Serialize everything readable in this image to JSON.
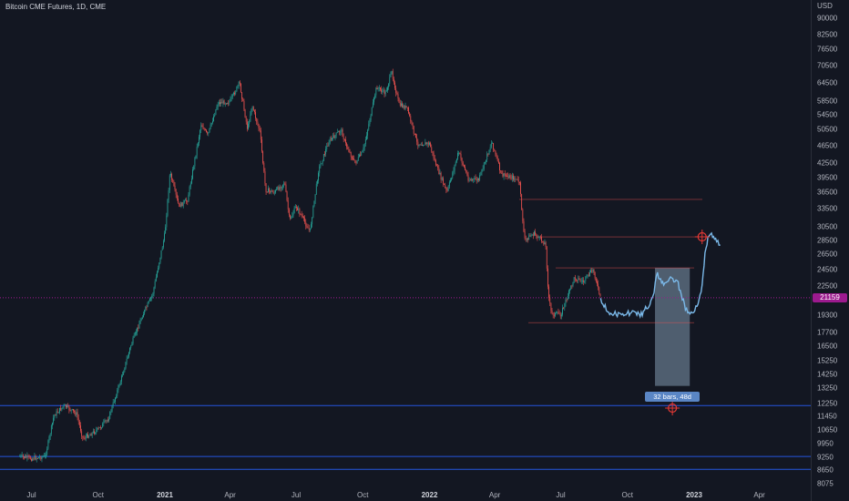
{
  "title": "Bitcoin CME Futures, 1D, CME",
  "axis": {
    "currency": "USD",
    "price_ticks": [
      "90000",
      "82500",
      "76500",
      "70500",
      "64500",
      "58500",
      "54500",
      "50500",
      "46500",
      "42500",
      "39500",
      "36500",
      "33500",
      "30500",
      "28500",
      "26500",
      "24500",
      "22500",
      "19300",
      "17700",
      "16500",
      "15250",
      "14250",
      "13250",
      "12250",
      "11450",
      "10650",
      "9950",
      "9250",
      "8650",
      "8075"
    ],
    "current_price": "21159",
    "time_ticks": [
      {
        "label": "Jul",
        "year": false
      },
      {
        "label": "Oct",
        "year": false
      },
      {
        "label": "2021",
        "year": true
      },
      {
        "label": "Apr",
        "year": false
      },
      {
        "label": "Jul",
        "year": false
      },
      {
        "label": "Oct",
        "year": false
      },
      {
        "label": "2022",
        "year": true
      },
      {
        "label": "Apr",
        "year": false
      },
      {
        "label": "Jul",
        "year": false
      },
      {
        "label": "Oct",
        "year": false
      },
      {
        "label": "2023",
        "year": true
      },
      {
        "label": "Apr",
        "year": false
      }
    ]
  },
  "drawings": {
    "date_range_label": "32 bars, 48d"
  },
  "colors": {
    "background": "#131722",
    "up": "#26a69a",
    "down": "#ef5350",
    "projection": "#7ab8e8",
    "price_line": "#9c1a8e",
    "horizontal_line": "#2962ff",
    "range_box": "#5f7083"
  },
  "chart_data": {
    "type": "line",
    "title": "Bitcoin CME Futures, 1D, CME",
    "xlabel": "",
    "ylabel": "USD",
    "scale": "log",
    "ylim": [
      7900,
      95000
    ],
    "series": [
      {
        "x": [
          "2020-06-15",
          "2020-07-01",
          "2020-07-20",
          "2020-08-01",
          "2020-08-15",
          "2020-09-01",
          "2020-09-10",
          "2020-10-01",
          "2020-10-15",
          "2020-11-01",
          "2020-11-15",
          "2020-12-01",
          "2020-12-15",
          "2021-01-01",
          "2021-01-08",
          "2021-01-20",
          "2021-02-01",
          "2021-02-20",
          "2021-03-01",
          "2021-03-15",
          "2021-04-01",
          "2021-04-14",
          "2021-04-25",
          "2021-05-01",
          "2021-05-12",
          "2021-05-20",
          "2021-06-01",
          "2021-06-15",
          "2021-06-22",
          "2021-07-01",
          "2021-07-20",
          "2021-08-01",
          "2021-08-15",
          "2021-09-01",
          "2021-09-07",
          "2021-09-20",
          "2021-10-01",
          "2021-10-20",
          "2021-11-01",
          "2021-11-10",
          "2021-11-20",
          "2021-12-01",
          "2021-12-15",
          "2022-01-01",
          "2022-01-10",
          "2022-01-25",
          "2022-02-10",
          "2022-02-24",
          "2022-03-10",
          "2022-03-28",
          "2022-04-10",
          "2022-04-25",
          "2022-05-05",
          "2022-05-12",
          "2022-05-25",
          "2022-06-10",
          "2022-06-14",
          "2022-06-18",
          "2022-07-01",
          "2022-07-20",
          "2022-08-01",
          "2022-08-15",
          "2022-08-25"
        ],
        "values": [
          9300,
          9200,
          9300,
          11500,
          12100,
          11600,
          10200,
          10700,
          11300,
          13800,
          16500,
          19300,
          21500,
          29500,
          40500,
          34000,
          35000,
          52000,
          49000,
          58000,
          58500,
          64500,
          50500,
          57500,
          50000,
          37000,
          36500,
          38500,
          31500,
          34000,
          29800,
          41000,
          47500,
          50500,
          47000,
          42500,
          45000,
          63000,
          61000,
          68000,
          57500,
          56500,
          47000,
          47000,
          42000,
          36500,
          45000,
          39000,
          39000,
          47500,
          40000,
          39500,
          38500,
          28500,
          29500,
          28000,
          21500,
          19500,
          19400,
          23500,
          23000,
          24500,
          21000
        ]
      },
      {
        "name": "projection",
        "x": [
          "2022-08-25",
          "2022-09-05",
          "2022-09-20",
          "2022-10-05",
          "2022-10-20",
          "2022-11-01",
          "2022-11-05",
          "2022-11-10",
          "2022-11-20",
          "2022-12-01",
          "2022-12-10",
          "2022-12-20",
          "2022-12-28",
          "2023-01-05",
          "2023-01-12",
          "2023-01-16",
          "2023-01-20",
          "2023-01-25",
          "2023-02-01",
          "2023-02-06"
        ],
        "values": [
          21000,
          19700,
          19300,
          19600,
          19400,
          20500,
          21000,
          24000,
          22800,
          23500,
          22700,
          20000,
          19600,
          20200,
          22500,
          26500,
          28900,
          29300,
          28500,
          27800
        ]
      }
    ],
    "levels": [
      35200,
      29000,
      24700,
      21159,
      18600,
      12100,
      9300,
      8700
    ],
    "date_range": {
      "start": "2022-11-08",
      "end": "2022-12-26",
      "label": "32 bars, 48d"
    }
  }
}
